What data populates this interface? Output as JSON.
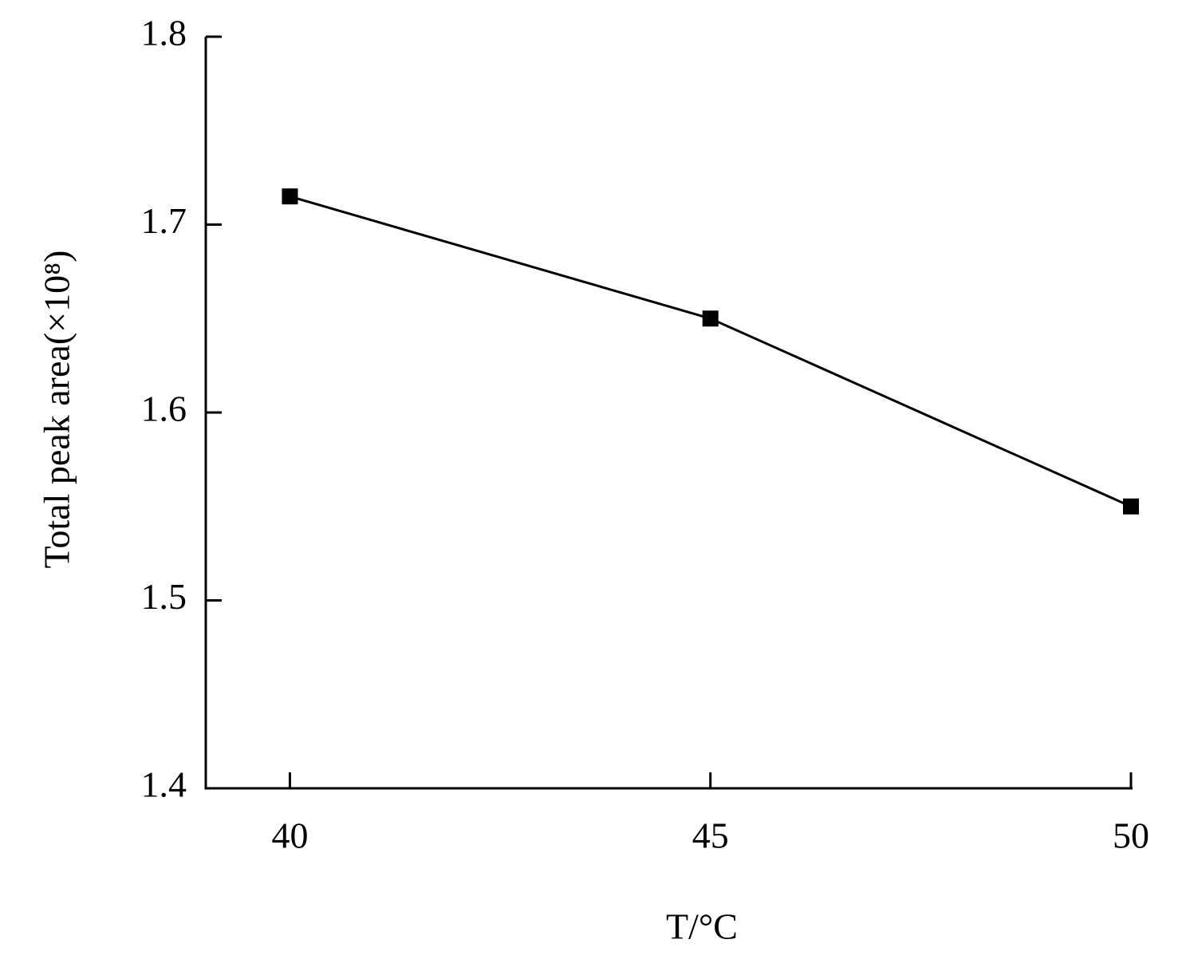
{
  "chart_data": {
    "type": "line",
    "x_label": "T/°C",
    "y_label": "Total peak area(×10⁸)",
    "x": [
      40,
      45,
      50
    ],
    "series": [
      {
        "color": "#000000",
        "values": [
          1.715,
          1.65,
          1.55
        ]
      }
    ],
    "xlim": [
      39,
      50
    ],
    "xticks": [
      40,
      45,
      50
    ],
    "ylim": [
      1.4,
      1.8
    ],
    "yticks": [
      1.4,
      1.5,
      1.6,
      1.7,
      1.8
    ],
    "grid": false
  }
}
